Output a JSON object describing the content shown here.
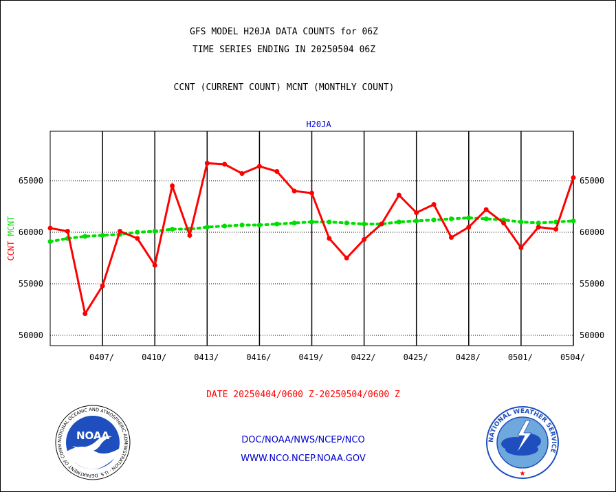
{
  "header": {
    "title_line1": "GFS MODEL H20JA DATA COUNTS for 06Z",
    "title_line2": "TIME SERIES ENDING IN 20250504 06Z",
    "title_line3": "CCNT (CURRENT COUNT) MCNT (MONTHLY COUNT)"
  },
  "colors": {
    "ccnt": "#ff0000",
    "mcnt": "#00dd00",
    "plot_title": "#0000cc",
    "date_range": "#ff0000",
    "links": "#0000cc"
  },
  "chart_data": {
    "type": "line",
    "title": "H20JA",
    "ylabel_parts": [
      {
        "text": "CCNT",
        "color": "#ff0000"
      },
      {
        "text": "MCNT",
        "color": "#00dd00"
      }
    ],
    "ylim": [
      49000,
      69800
    ],
    "yticks": [
      50000,
      55000,
      60000,
      65000
    ],
    "ytick_labels": [
      "50000",
      "55000",
      "60000",
      "65000"
    ],
    "x_range": [
      "2025-04-04 06Z",
      "2025-05-04 06Z"
    ],
    "x_tick_positions": [
      3,
      6,
      9,
      12,
      15,
      18,
      21,
      24,
      27,
      30
    ],
    "xtick_labels": [
      "0407/",
      "0410/",
      "0413/",
      "0416/",
      "0419/",
      "0422/",
      "0425/",
      "0428/",
      "0501/",
      "0504/"
    ],
    "grid": true,
    "series": [
      {
        "name": "CCNT",
        "color": "#ff0000",
        "style": "solid",
        "x": [
          0,
          1,
          2,
          3,
          4,
          5,
          6,
          7,
          8,
          9,
          10,
          11,
          12,
          13,
          14,
          15,
          16,
          17,
          18,
          19,
          20,
          21,
          22,
          23,
          24,
          25,
          26,
          27,
          28,
          29,
          30
        ],
        "values": [
          60400,
          60100,
          52100,
          54800,
          60100,
          59400,
          56800,
          64500,
          59700,
          66700,
          66600,
          65700,
          66400,
          65900,
          64000,
          63800,
          59400,
          57500,
          59300,
          60800,
          63600,
          61900,
          62700,
          59500,
          60500,
          62200,
          60900,
          58500,
          60500,
          60300,
          65300
        ]
      },
      {
        "name": "MCNT",
        "color": "#00dd00",
        "style": "dotted",
        "x": [
          0,
          1,
          2,
          3,
          4,
          5,
          6,
          7,
          8,
          9,
          10,
          11,
          12,
          13,
          14,
          15,
          16,
          17,
          18,
          19,
          20,
          21,
          22,
          23,
          24,
          25,
          26,
          27,
          28,
          29,
          30
        ],
        "values": [
          59100,
          59400,
          59600,
          59700,
          59800,
          60000,
          60100,
          60300,
          60300,
          60500,
          60600,
          60700,
          60700,
          60800,
          60900,
          61000,
          61000,
          60900,
          60800,
          60800,
          61000,
          61100,
          61200,
          61300,
          61400,
          61300,
          61200,
          61000,
          60900,
          61000,
          61100
        ]
      }
    ]
  },
  "footer": {
    "date_range": "DATE 20250404/0600 Z-20250504/0600 Z",
    "org_path": "DOC/NOAA/NWS/NCEP/NCO",
    "website": "WWW.NCO.NCEP.NOAA.GOV",
    "noaa_logo_text": "NOAA",
    "noaa_ring_text": "NATIONAL OCEANIC AND ATMOSPHERIC ADMINISTRATION · U.S. DEPARTMENT OF COMMERCE",
    "nws_ring_text": "NATIONAL WEATHER SERVICE"
  }
}
